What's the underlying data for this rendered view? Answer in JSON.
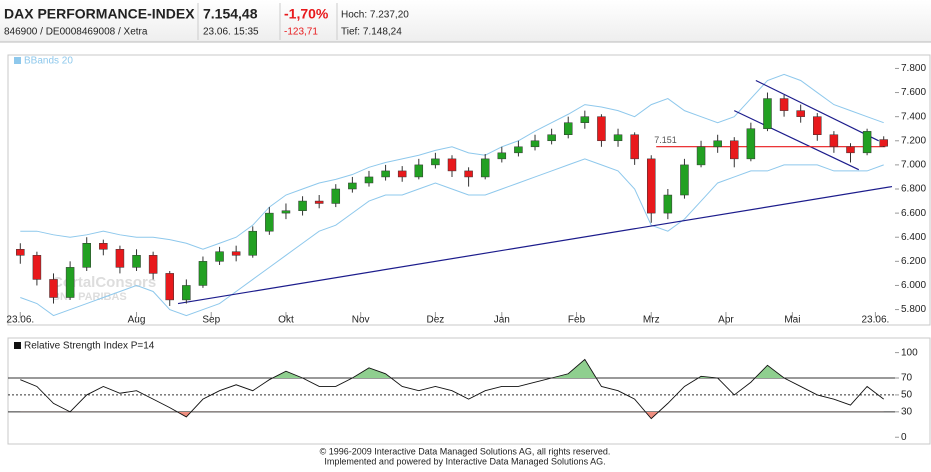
{
  "header": {
    "title": "DAX PERFORMANCE-INDEX",
    "subtitle": "846900 / DE0008469008 / Xetra",
    "price": "7.154,48",
    "time": "23.06. 15:35",
    "change_pct": "-1,70%",
    "change_abs": "-123,71",
    "high": "Hoch: 7.237,20",
    "low": "Tief: 7.148,24"
  },
  "chart_data": [
    {
      "type": "candlestick",
      "legend": "BBands 20",
      "watermark": [
        "CortalConsors",
        "BNP PARIBAS"
      ],
      "up_color": "#22a022",
      "down_color": "#e8191c",
      "band_color": "#8ec8ec",
      "xlim": [
        0,
        53
      ],
      "ylim": [
        5730,
        7870
      ],
      "xticks": [
        {
          "value": 0.5,
          "label": "23.06."
        },
        {
          "value": 7.5,
          "label": "Aug"
        },
        {
          "value": 12,
          "label": "Sep"
        },
        {
          "value": 16.5,
          "label": "Okt"
        },
        {
          "value": 21,
          "label": "Nov"
        },
        {
          "value": 25.5,
          "label": "Dez"
        },
        {
          "value": 29.5,
          "label": "Jan"
        },
        {
          "value": 34,
          "label": "Feb"
        },
        {
          "value": 38.5,
          "label": "Mrz"
        },
        {
          "value": 43,
          "label": "Apr"
        },
        {
          "value": 47,
          "label": "Mai"
        },
        {
          "value": 52,
          "label": "23.06."
        }
      ],
      "yticks": [
        {
          "value": 5800,
          "label": "5.800"
        },
        {
          "value": 6000,
          "label": "6.000"
        },
        {
          "value": 6200,
          "label": "6.200"
        },
        {
          "value": 6400,
          "label": "6.400"
        },
        {
          "value": 6600,
          "label": "6.600"
        },
        {
          "value": 6800,
          "label": "6.800"
        },
        {
          "value": 7000,
          "label": "7.000"
        },
        {
          "value": 7200,
          "label": "7.200"
        },
        {
          "value": 7400,
          "label": "7.400"
        },
        {
          "value": 7600,
          "label": "7.600"
        },
        {
          "value": 7800,
          "label": "7.800"
        }
      ],
      "open": [
        6300,
        6250,
        6050,
        5900,
        6150,
        6350,
        6300,
        6150,
        6250,
        6100,
        5880,
        6000,
        6200,
        6280,
        6250,
        6450,
        6600,
        6620,
        6700,
        6680,
        6800,
        6850,
        6900,
        6950,
        6900,
        7000,
        7050,
        6950,
        6900,
        7050,
        7100,
        7150,
        7200,
        7250,
        7350,
        7400,
        7200,
        7250,
        7050,
        6600,
        6750,
        7000,
        7150,
        7200,
        7050,
        7300,
        7550,
        7450,
        7400,
        7250,
        7150,
        7100,
        7210
      ],
      "high": [
        6350,
        6280,
        6100,
        6200,
        6400,
        6380,
        6330,
        6300,
        6280,
        6120,
        6050,
        6240,
        6320,
        6330,
        6490,
        6650,
        6680,
        6740,
        6750,
        6840,
        6900,
        6950,
        7000,
        6990,
        7050,
        7100,
        7080,
        6980,
        7090,
        7150,
        7200,
        7250,
        7300,
        7400,
        7450,
        7420,
        7300,
        7270,
        7080,
        6800,
        7050,
        7200,
        7250,
        7230,
        7350,
        7600,
        7580,
        7500,
        7430,
        7280,
        7180,
        7300,
        7237.2
      ],
      "low": [
        6180,
        6000,
        5850,
        5880,
        6120,
        6250,
        6100,
        6120,
        6050,
        5830,
        5850,
        5980,
        6170,
        6200,
        6230,
        6420,
        6550,
        6580,
        6640,
        6650,
        6770,
        6820,
        6870,
        6860,
        6880,
        6970,
        6900,
        6820,
        6880,
        7020,
        7070,
        7120,
        7170,
        7220,
        7300,
        7150,
        7150,
        7000,
        6520,
        6550,
        6720,
        6980,
        7100,
        6980,
        7030,
        7280,
        7400,
        7350,
        7200,
        7100,
        7020,
        7080,
        7148.24
      ],
      "close": [
        6250,
        6050,
        5900,
        6150,
        6350,
        6300,
        6150,
        6250,
        6100,
        5880,
        6000,
        6200,
        6280,
        6250,
        6450,
        6600,
        6620,
        6700,
        6680,
        6800,
        6850,
        6900,
        6950,
        6900,
        7000,
        7050,
        6950,
        6900,
        7050,
        7100,
        7150,
        7200,
        7250,
        7350,
        7400,
        7200,
        7250,
        7050,
        6600,
        6750,
        7000,
        7150,
        7200,
        7050,
        7300,
        7550,
        7450,
        7400,
        7250,
        7150,
        7100,
        7278.19,
        7154.48
      ],
      "band_upper": [
        6450,
        6450,
        6420,
        6400,
        6420,
        6450,
        6420,
        6400,
        6400,
        6380,
        6350,
        6300,
        6350,
        6400,
        6500,
        6650,
        6750,
        6800,
        6850,
        6880,
        6920,
        6980,
        7020,
        7050,
        7080,
        7120,
        7150,
        7100,
        7080,
        7150,
        7200,
        7280,
        7350,
        7420,
        7500,
        7480,
        7450,
        7400,
        7500,
        7550,
        7450,
        7400,
        7350,
        7400,
        7550,
        7700,
        7750,
        7700,
        7600,
        7500,
        7450,
        7400,
        7350
      ],
      "band_lower": [
        5900,
        5850,
        5750,
        5800,
        5850,
        5900,
        5950,
        6000,
        5950,
        5800,
        5750,
        5800,
        5850,
        5950,
        6050,
        6150,
        6250,
        6350,
        6450,
        6500,
        6600,
        6700,
        6750,
        6750,
        6800,
        6850,
        6800,
        6750,
        6750,
        6800,
        6850,
        6900,
        6950,
        7000,
        7050,
        7000,
        6950,
        6800,
        6500,
        6450,
        6550,
        6700,
        6850,
        6900,
        6950,
        6950,
        7000,
        7000,
        7000,
        6950,
        6950,
        6950,
        7000
      ],
      "trendlines": [
        {
          "color": "#1c1c8c",
          "x": [
            10,
            53
          ],
          "y": [
            5850,
            6820
          ]
        },
        {
          "color": "#1c1c8c",
          "x": [
            44.8,
            52.2
          ],
          "y": [
            7700,
            7200
          ]
        },
        {
          "color": "#1c1c8c",
          "x": [
            43.5,
            51
          ],
          "y": [
            7450,
            6960
          ]
        }
      ],
      "hline": {
        "value": 7151,
        "label": "7.151",
        "color": "#e8191c",
        "x": [
          38.8,
          52.6
        ]
      }
    },
    {
      "type": "line",
      "legend": "Relative Strength Index P=14",
      "color": "#111111",
      "above_color": "#8fcf8f",
      "below_color": "#ef8f80",
      "xlim": [
        0,
        53
      ],
      "ylim": [
        -8,
        109
      ],
      "upper": 70,
      "middle": 50,
      "lower": 30,
      "yticks": [
        0,
        30,
        50,
        70,
        100
      ],
      "values": [
        68,
        60,
        40,
        30,
        50,
        60,
        52,
        55,
        45,
        35,
        24,
        45,
        55,
        62,
        55,
        68,
        78,
        70,
        60,
        60,
        70,
        82,
        75,
        60,
        55,
        60,
        55,
        45,
        55,
        60,
        60,
        65,
        70,
        75,
        92,
        60,
        55,
        45,
        22,
        40,
        60,
        72,
        70,
        50,
        65,
        85,
        70,
        60,
        50,
        45,
        38,
        60,
        45
      ]
    }
  ],
  "footer": [
    "© 1996-2009 Interactive Data Managed Solutions AG, all rights reserved.",
    "Implemented and powered by Interactive Data Managed Solutions AG."
  ]
}
